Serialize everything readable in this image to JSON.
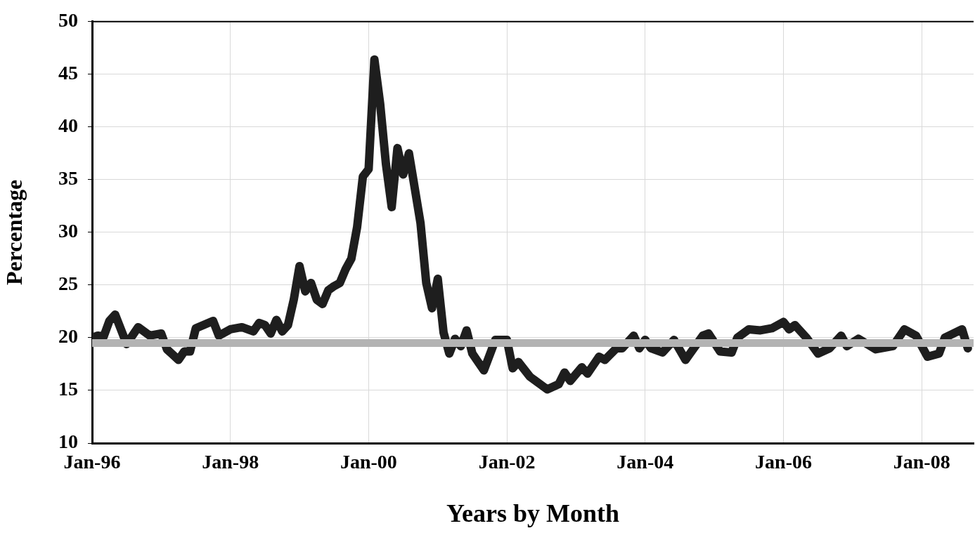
{
  "chart_data": {
    "type": "line",
    "xlabel": "Years by Month",
    "ylabel": "Percentage",
    "x": [
      "1996-01",
      "1996-02",
      "1996-03",
      "1996-04",
      "1996-05",
      "1996-07",
      "1996-09",
      "1996-11",
      "1997-01",
      "1997-02",
      "1997-04",
      "1997-05",
      "1997-06",
      "1997-07",
      "1997-10",
      "1997-11",
      "1998-01",
      "1998-03",
      "1998-05",
      "1998-06",
      "1998-07",
      "1998-08",
      "1998-09",
      "1998-10",
      "1998-11",
      "1998-12",
      "1999-01",
      "1999-02",
      "1999-03",
      "1999-04",
      "1999-05",
      "1999-06",
      "1999-07",
      "1999-08",
      "1999-09",
      "1999-10",
      "1999-11",
      "1999-12",
      "2000-01",
      "2000-02",
      "2000-03",
      "2000-04",
      "2000-05",
      "2000-06",
      "2000-07",
      "2000-08",
      "2000-09",
      "2000-10",
      "2000-11",
      "2000-12",
      "2001-01",
      "2001-02",
      "2001-03",
      "2001-04",
      "2001-05",
      "2001-06",
      "2001-07",
      "2001-09",
      "2001-11",
      "2002-01",
      "2002-02",
      "2002-03",
      "2002-05",
      "2002-08",
      "2002-10",
      "2002-11",
      "2002-12",
      "2003-02",
      "2003-03",
      "2003-05",
      "2003-06",
      "2003-08",
      "2003-09",
      "2003-11",
      "2003-12",
      "2004-01",
      "2004-02",
      "2004-04",
      "2004-06",
      "2004-08",
      "2004-11",
      "2004-12",
      "2005-02",
      "2005-04",
      "2005-05",
      "2005-07",
      "2005-09",
      "2005-11",
      "2006-01",
      "2006-02",
      "2006-03",
      "2006-05",
      "2006-07",
      "2006-09",
      "2006-11",
      "2006-12",
      "2007-02",
      "2007-05",
      "2007-08",
      "2007-10",
      "2007-12",
      "2008-02",
      "2008-04",
      "2008-05",
      "2008-08",
      "2008-09"
    ],
    "series": [
      {
        "color": "#1e1e1e",
        "values": [
          20.0,
          20.2,
          20.1,
          21.6,
          22.2,
          19.4,
          21.0,
          20.2,
          20.4,
          18.9,
          17.9,
          18.7,
          18.7,
          20.9,
          21.6,
          20.2,
          20.8,
          21.0,
          20.6,
          21.4,
          21.2,
          20.4,
          21.7,
          20.6,
          21.2,
          23.6,
          26.8,
          24.4,
          25.2,
          23.6,
          23.2,
          24.5,
          24.9,
          25.2,
          26.5,
          27.5,
          30.5,
          35.3,
          36.0,
          46.4,
          42.2,
          36.5,
          32.4,
          38.0,
          35.5,
          37.5,
          34.2,
          30.9,
          25.2,
          22.8,
          25.6,
          20.5,
          18.5,
          19.9,
          19.2,
          20.7,
          18.5,
          16.9,
          19.8,
          19.8,
          17.1,
          17.7,
          16.3,
          15.1,
          15.6,
          16.7,
          15.9,
          17.2,
          16.6,
          18.2,
          17.9,
          19.0,
          19.0,
          20.2,
          19.0,
          19.8,
          19.0,
          18.6,
          19.8,
          17.9,
          20.2,
          20.4,
          18.7,
          18.6,
          20.0,
          20.8,
          20.7,
          20.9,
          21.5,
          20.8,
          21.2,
          20.0,
          18.5,
          19.0,
          20.2,
          19.2,
          19.9,
          18.9,
          19.2,
          20.8,
          20.2,
          18.2,
          18.5,
          20.0,
          20.8,
          19.0
        ]
      }
    ],
    "xlim": [
      "1996-01",
      "2008-10"
    ],
    "xticks": [
      {
        "value": "1996-01",
        "label": "Jan-96"
      },
      {
        "value": "1998-01",
        "label": "Jan-98"
      },
      {
        "value": "2000-01",
        "label": "Jan-00"
      },
      {
        "value": "2002-01",
        "label": "Jan-02"
      },
      {
        "value": "2004-01",
        "label": "Jan-04"
      },
      {
        "value": "2006-01",
        "label": "Jan-06"
      },
      {
        "value": "2008-01",
        "label": "Jan-08"
      }
    ],
    "ylim": [
      10,
      50
    ],
    "yticks": [
      10,
      15,
      20,
      25,
      30,
      35,
      40,
      45,
      50
    ],
    "ref_lines": [
      {
        "axis": "y",
        "value": 19.5,
        "color": "#b3b3b3"
      }
    ],
    "grid": true,
    "legend": false,
    "marker": "none",
    "line_style": "solid"
  }
}
